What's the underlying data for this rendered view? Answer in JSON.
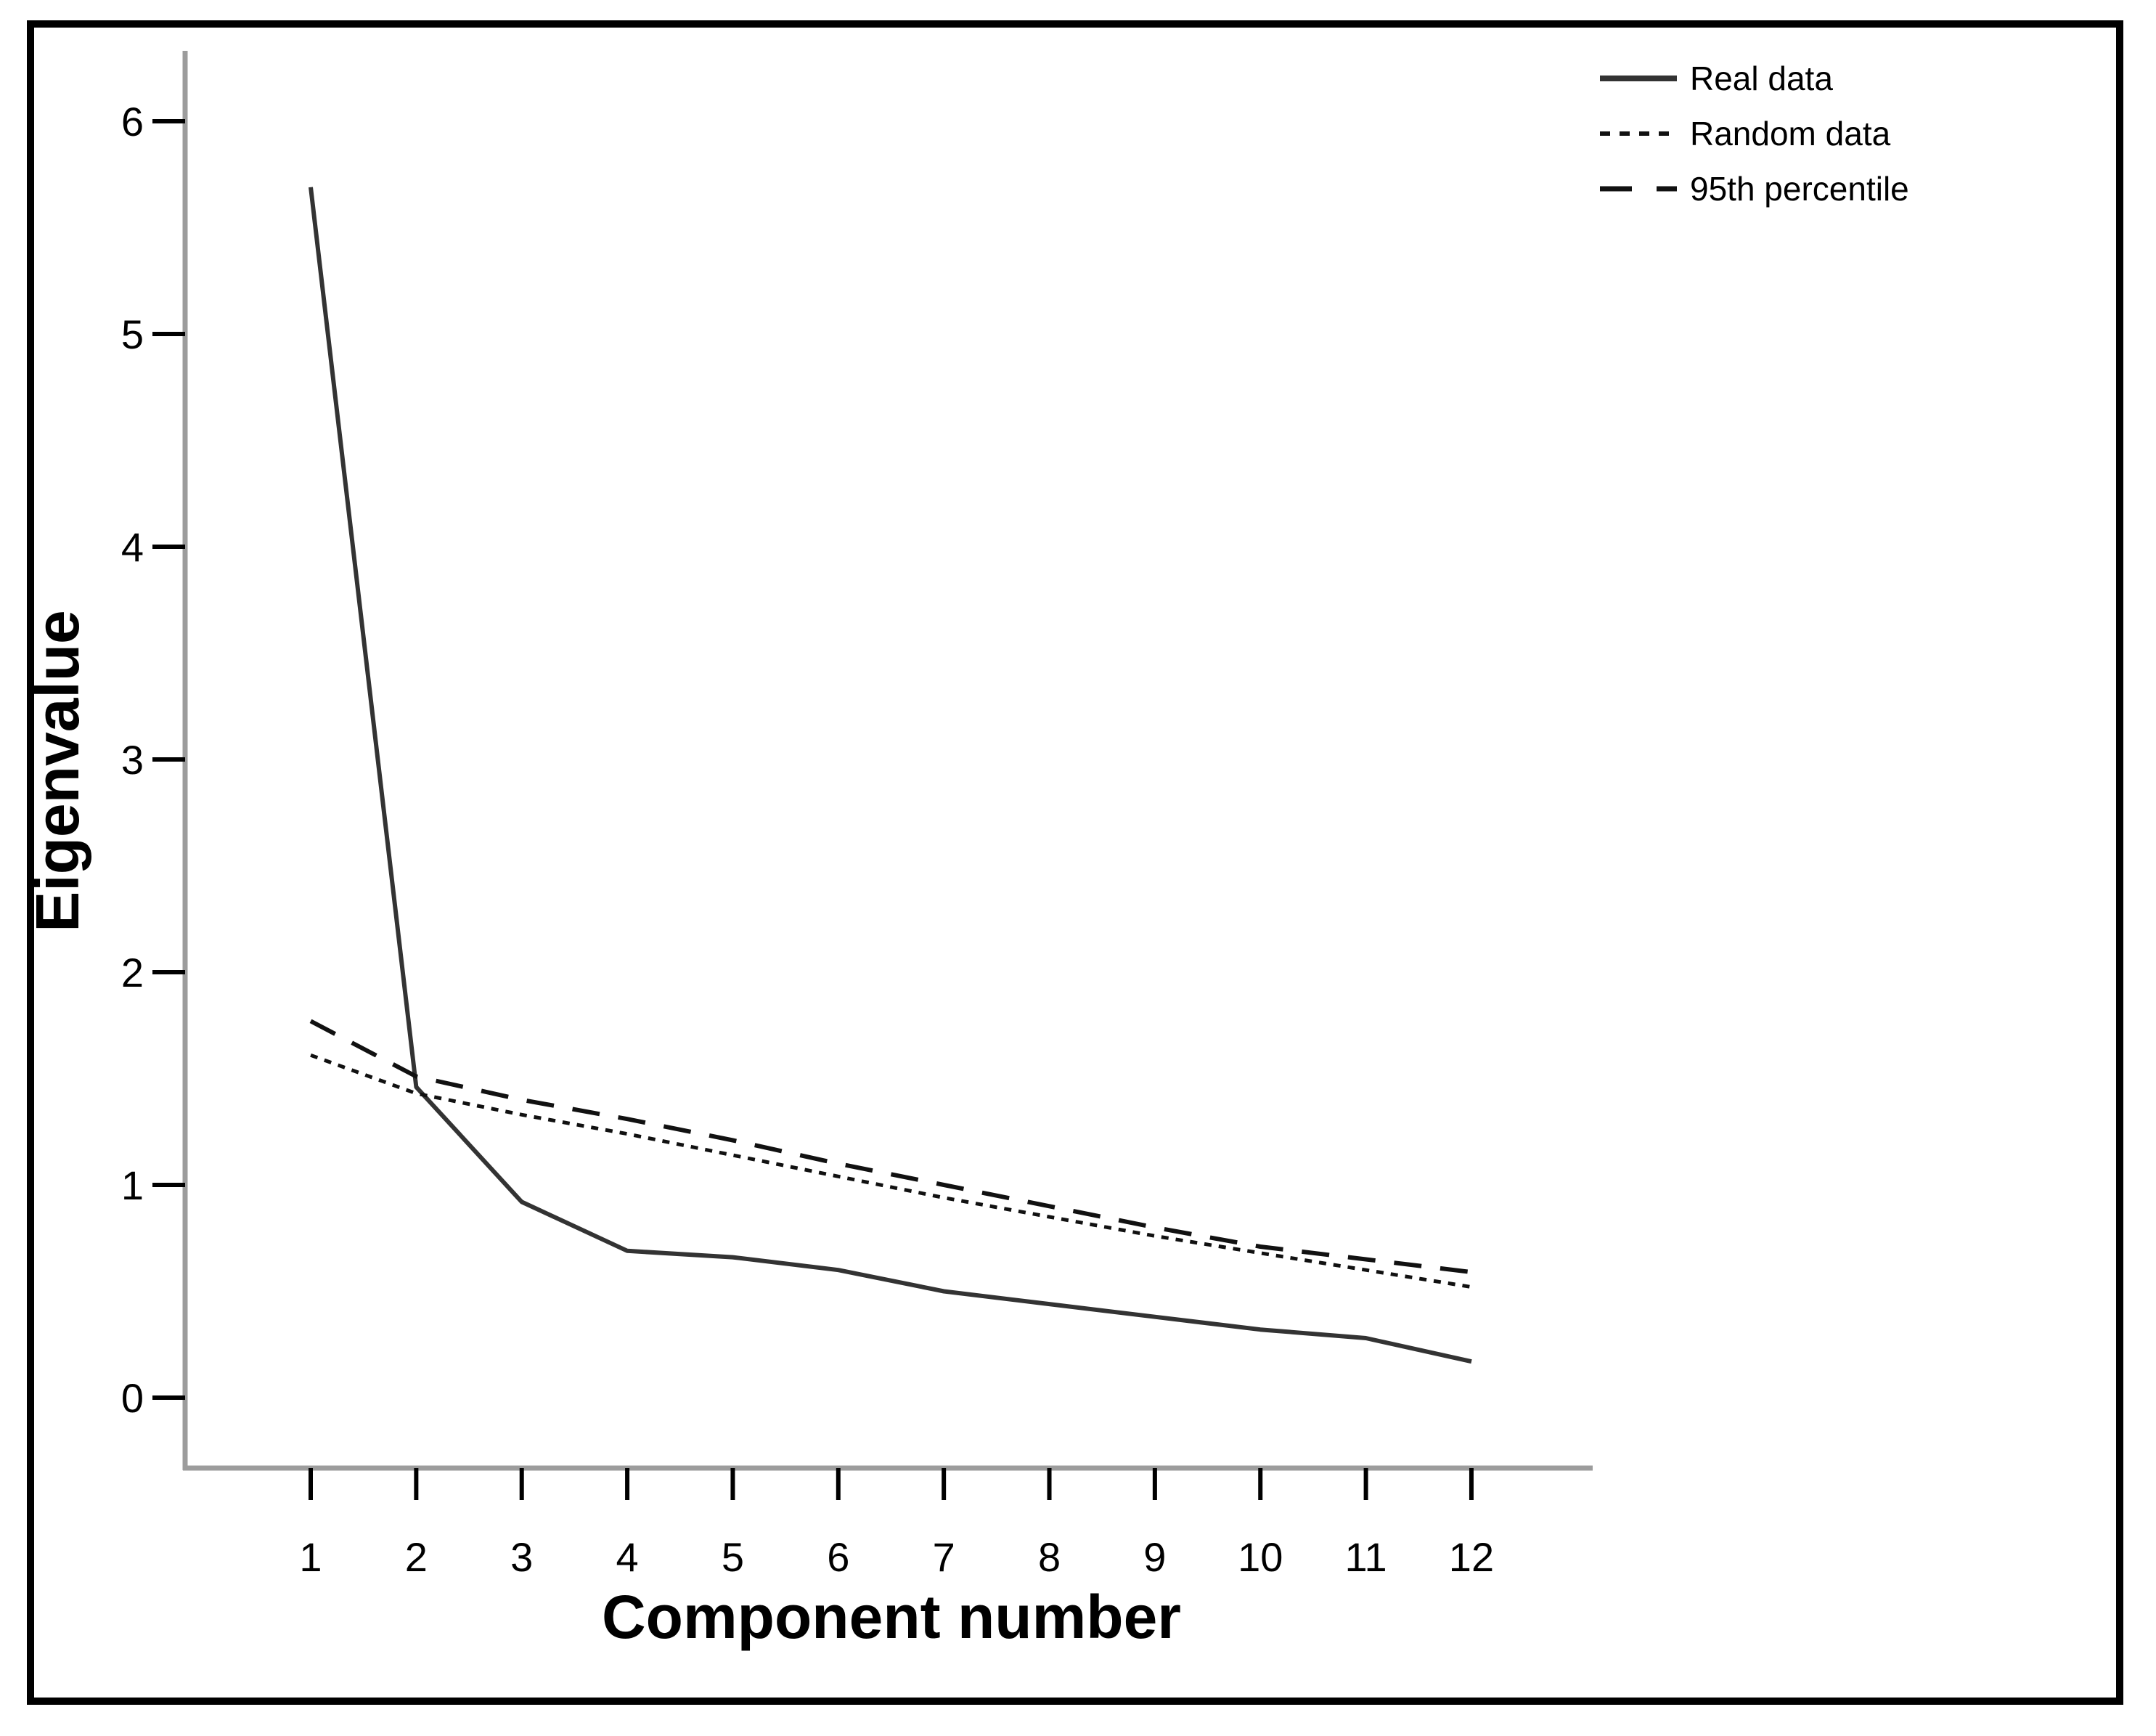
{
  "figure": {
    "background": "#ffffff",
    "border_color": "#000000"
  },
  "chart_data": {
    "type": "line",
    "title": "",
    "xlabel": "Component number",
    "ylabel": "Eigenvalue",
    "x": [
      1,
      2,
      3,
      4,
      5,
      6,
      7,
      8,
      9,
      10,
      11,
      12
    ],
    "x_tick_labels": [
      "1",
      "2",
      "3",
      "4",
      "5",
      "6",
      "7",
      "8",
      "9",
      "10",
      "11",
      "12"
    ],
    "y_ticks": [
      0,
      1,
      2,
      3,
      4,
      5,
      6
    ],
    "y_tick_labels": [
      "0",
      "1",
      "2",
      "3",
      "4",
      "5",
      "6"
    ],
    "ylim": [
      0,
      6.35
    ],
    "grid": false,
    "legend_position": "top-right",
    "series": [
      {
        "name": "Real data",
        "style": "solid",
        "values": [
          5.69,
          1.46,
          0.92,
          0.69,
          0.66,
          0.6,
          0.5,
          0.44,
          0.38,
          0.32,
          0.28,
          0.17
        ]
      },
      {
        "name": "Random data",
        "style": "dotted",
        "values": [
          1.61,
          1.43,
          1.33,
          1.24,
          1.14,
          1.04,
          0.94,
          0.85,
          0.76,
          0.68,
          0.6,
          0.52
        ]
      },
      {
        "name": "95th percentile",
        "style": "dashed",
        "values": [
          1.77,
          1.51,
          1.4,
          1.31,
          1.21,
          1.1,
          1.0,
          0.9,
          0.8,
          0.71,
          0.65,
          0.59
        ]
      }
    ],
    "colors": {
      "real_data_line": "#333333",
      "random_data_line": "#111111",
      "percentile_line": "#111111",
      "axis_line": "#9c9c9c",
      "tick_mark": "#000000",
      "text": "#000000"
    }
  }
}
